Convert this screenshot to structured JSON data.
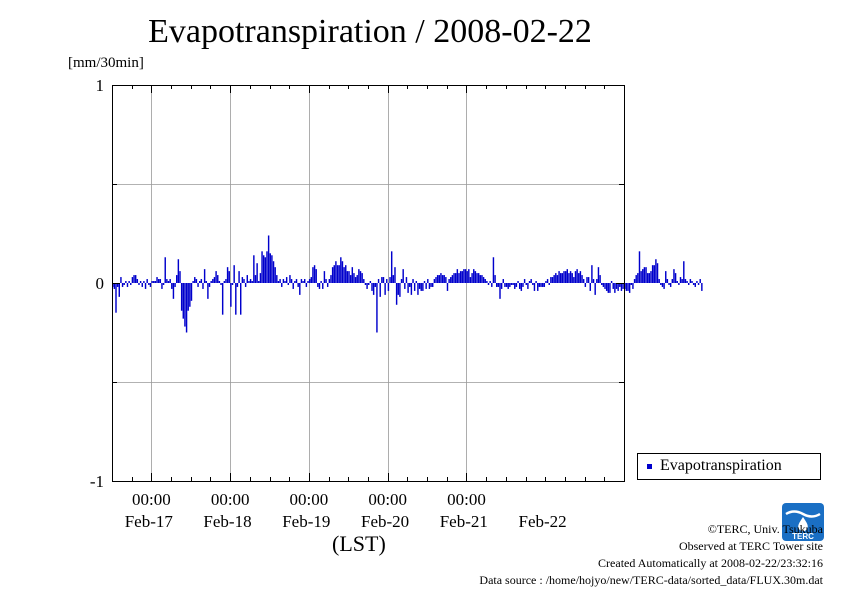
{
  "title": "Evapotranspiration / 2008-02-22",
  "y_unit": "[mm/30min]",
  "x_axis_label": "(LST)",
  "legend": {
    "label": "Evapotranspiration",
    "color": "#0000cc"
  },
  "credits": {
    "copyright": "©TERC, Univ. Tsukuba",
    "observed": "Observed at TERC Tower site",
    "created": "Created Automatically at 2008-02-22/23:32:16",
    "source": "Data source : /home/hojyo/new/TERC-data/sorted_data/FLUX.30m.dat"
  },
  "logo": {
    "text": "TERC",
    "color": "#1a6fc4"
  },
  "chart_data": {
    "type": "bar",
    "title": "Evapotranspiration / 2008-02-22",
    "ylabel": "[mm/30min]",
    "xlabel": "(LST)",
    "ylim": [
      -1,
      1
    ],
    "yticks": [
      "1",
      "0",
      "-1"
    ],
    "x_time_ticks": [
      "00:00",
      "00:00",
      "00:00",
      "00:00",
      "00:00"
    ],
    "x_date_ticks": [
      "Feb-17",
      "Feb-18",
      "Feb-19",
      "Feb-20",
      "Feb-21",
      "Feb-22"
    ],
    "grid": true,
    "legend_position": "right-bottom",
    "series": [
      {
        "name": "Evapotranspiration",
        "color": "#0000cc",
        "start": "2008-02-16 12:00",
        "interval_minutes": 30,
        "values": [
          -0.02,
          -0.03,
          -0.15,
          -0.02,
          -0.07,
          0.03,
          -0.02,
          -0.01,
          0.01,
          -0.02,
          0.01,
          -0.01,
          0.03,
          0.04,
          0.04,
          0.02,
          -0.01,
          0.01,
          -0.02,
          0.01,
          -0.03,
          0.02,
          -0.01,
          -0.02,
          0.01,
          0.01,
          0.01,
          0.03,
          0.02,
          0.02,
          -0.03,
          -0.01,
          0.13,
          0.02,
          0.01,
          0.02,
          -0.03,
          -0.08,
          -0.02,
          0.04,
          0.12,
          0.06,
          -0.14,
          -0.18,
          -0.22,
          -0.25,
          -0.14,
          -0.12,
          -0.09,
          0.01,
          0.03,
          0.02,
          -0.02,
          0.01,
          0.02,
          -0.03,
          0.07,
          0.01,
          -0.08,
          -0.02,
          0.01,
          0.02,
          0.03,
          0.06,
          0.04,
          0.01,
          -0.01,
          -0.16,
          0.01,
          0.02,
          0.08,
          0.06,
          -0.12,
          -0.01,
          0.09,
          -0.16,
          -0.02,
          0.06,
          -0.16,
          0.03,
          0.02,
          -0.02,
          0.04,
          0.01,
          0.02,
          0.01,
          0.14,
          0.04,
          0.1,
          0.01,
          0.05,
          0.16,
          0.14,
          0.13,
          0.16,
          0.24,
          0.15,
          0.14,
          0.11,
          0.08,
          0.04,
          0.01,
          0.02,
          -0.02,
          0.02,
          0.01,
          0.03,
          -0.01,
          0.04,
          0.02,
          -0.03,
          0.01,
          0.02,
          -0.02,
          -0.06,
          0.02,
          0.01,
          0.02,
          -0.02,
          0.01,
          0.02,
          0.03,
          0.08,
          0.09,
          0.07,
          -0.02,
          -0.03,
          0.01,
          -0.03,
          0.06,
          0.02,
          -0.02,
          0.02,
          0.04,
          0.08,
          0.09,
          0.11,
          0.09,
          0.09,
          0.13,
          0.11,
          0.08,
          0.09,
          0.06,
          0.06,
          0.04,
          0.08,
          0.05,
          0.03,
          0.04,
          0.07,
          0.06,
          0.05,
          0.02,
          -0.01,
          -0.03,
          -0.01,
          0.01,
          -0.04,
          -0.06,
          -0.02,
          -0.25,
          0.02,
          -0.07,
          0.03,
          0.03,
          -0.06,
          0.02,
          -0.04,
          0.03,
          0.16,
          0.04,
          0.08,
          -0.11,
          -0.06,
          -0.07,
          0.02,
          0.07,
          -0.03,
          0.03,
          -0.05,
          -0.02,
          -0.06,
          0.02,
          -0.04,
          0.01,
          -0.06,
          -0.03,
          -0.04,
          -0.04,
          0.01,
          -0.03,
          0.02,
          -0.03,
          -0.02,
          -0.02,
          0.02,
          0.03,
          0.04,
          0.04,
          0.05,
          0.04,
          0.04,
          0.03,
          -0.04,
          0.02,
          0.03,
          0.04,
          0.05,
          0.05,
          0.07,
          0.05,
          0.06,
          0.06,
          0.07,
          0.07,
          0.06,
          0.07,
          0.03,
          0.05,
          0.07,
          0.06,
          0.05,
          0.05,
          0.04,
          0.04,
          0.03,
          0.02,
          0.01,
          -0.01,
          0.01,
          -0.02,
          0.13,
          0.04,
          -0.02,
          -0.02,
          -0.08,
          -0.03,
          0.02,
          -0.02,
          -0.02,
          -0.03,
          -0.02,
          -0.01,
          -0.01,
          -0.03,
          -0.02,
          0.01,
          -0.03,
          -0.04,
          -0.02,
          0.02,
          -0.01,
          -0.03,
          0.01,
          0.02,
          -0.01,
          -0.04,
          0.01,
          -0.04,
          -0.02,
          -0.02,
          -0.02,
          -0.02,
          0.01,
          0.02,
          -0.01,
          0.03,
          0.03,
          0.04,
          0.05,
          0.04,
          0.06,
          0.05,
          0.05,
          0.06,
          0.06,
          0.07,
          0.05,
          0.06,
          0.05,
          0.03,
          0.06,
          0.07,
          0.05,
          0.06,
          0.04,
          0.02,
          -0.02,
          0.03,
          0.03,
          -0.04,
          0.09,
          0.02,
          -0.06,
          0.02,
          0.08,
          0.04,
          -0.01,
          -0.02,
          -0.03,
          -0.04,
          -0.05,
          -0.05,
          0.01,
          -0.03,
          -0.05,
          -0.03,
          -0.04,
          -0.02,
          -0.04,
          -0.03,
          -0.03,
          -0.04,
          -0.04,
          -0.05,
          -0.01,
          -0.03,
          0.02,
          0.04,
          0.05,
          0.16,
          0.06,
          0.07,
          0.08,
          0.08,
          0.05,
          0.05,
          0.06,
          0.09,
          0.09,
          0.12,
          0.1,
          0.02,
          -0.01,
          -0.02,
          -0.03,
          0.06,
          0.02,
          -0.01,
          -0.02,
          0.02,
          0.07,
          0.05,
          0.01,
          -0.01,
          0.03,
          0.02,
          0.11,
          0.02,
          0.01,
          -0.01,
          0.02,
          0.01,
          -0.01,
          -0.02,
          0.01,
          -0.01,
          0.02,
          -0.04
        ]
      }
    ]
  }
}
